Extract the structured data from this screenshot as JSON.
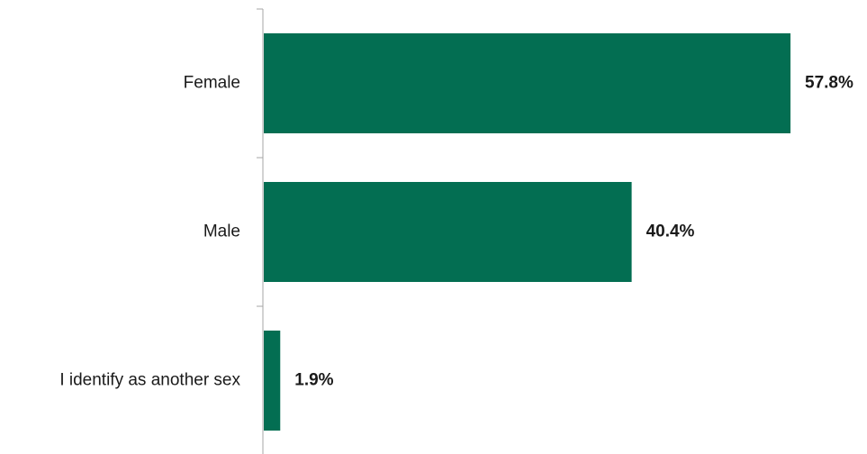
{
  "chart_data": {
    "type": "bar",
    "orientation": "horizontal",
    "categories": [
      "Female",
      "Male",
      "I identify as another sex"
    ],
    "values": [
      57.8,
      40.4,
      1.9
    ],
    "value_labels": [
      "57.8%",
      "40.4%",
      "1.9%"
    ],
    "title": "",
    "xlabel": "",
    "ylabel": "",
    "xlim": [
      0,
      57.8
    ],
    "grid": false,
    "legend": "none",
    "bar_color": "#036e52",
    "axis_color": "#a6a6a6",
    "text_color": "#1a1a1a"
  }
}
